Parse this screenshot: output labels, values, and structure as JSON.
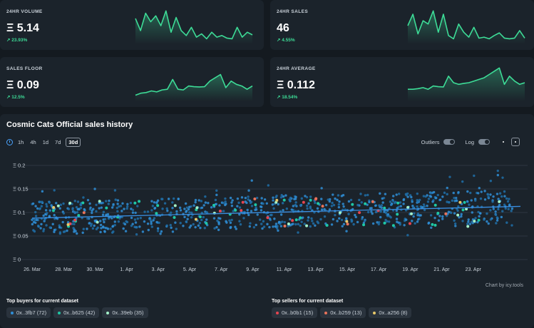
{
  "cards": [
    {
      "label": "24HR VOLUME",
      "value": "Ξ 5.14",
      "delta": "↗ 23.93%",
      "spark": [
        0.72,
        0.35,
        0.88,
        0.62,
        0.8,
        0.5,
        0.95,
        0.3,
        0.75,
        0.35,
        0.2,
        0.45,
        0.15,
        0.25,
        0.1,
        0.3,
        0.15,
        0.2,
        0.12,
        0.1,
        0.45,
        0.15,
        0.3,
        0.22
      ]
    },
    {
      "label": "24HR SALES",
      "value": "46",
      "delta": "↗ 4.55%",
      "spark": [
        0.5,
        0.85,
        0.25,
        0.65,
        0.55,
        0.95,
        0.3,
        0.85,
        0.2,
        0.1,
        0.55,
        0.3,
        0.15,
        0.45,
        0.12,
        0.15,
        0.1,
        0.2,
        0.28,
        0.12,
        0.1,
        0.12,
        0.35,
        0.12
      ]
    },
    {
      "label": "SALES FLOOR",
      "value": "Ξ 0.09",
      "delta": "↗ 12.5%",
      "spark": [
        0.12,
        0.18,
        0.2,
        0.25,
        0.22,
        0.28,
        0.3,
        0.6,
        0.3,
        0.28,
        0.4,
        0.38,
        0.37,
        0.38,
        0.55,
        0.65,
        0.75,
        0.35,
        0.55,
        0.45,
        0.4,
        0.3,
        0.4
      ]
    },
    {
      "label": "24HR AVERAGE",
      "value": "Ξ 0.112",
      "delta": "↗ 18.54%",
      "spark": [
        0.3,
        0.3,
        0.32,
        0.35,
        0.3,
        0.4,
        0.38,
        0.37,
        0.7,
        0.5,
        0.45,
        0.48,
        0.5,
        0.55,
        0.6,
        0.65,
        0.75,
        0.85,
        0.95,
        0.45,
        0.7,
        0.55,
        0.45,
        0.5
      ]
    }
  ],
  "main": {
    "title": "Cosmic Cats Official sales history",
    "ranges": [
      "1h",
      "4h",
      "1d",
      "7d",
      "30d"
    ],
    "active_range": "30d",
    "outliers_label": "Outliers",
    "log_label": "Log",
    "credit": "Chart by icy.tools"
  },
  "buyers": {
    "title": "Top buyers for current dataset",
    "items": [
      {
        "label": "0x..3fb7 (72)",
        "color": "#2f8fd8"
      },
      {
        "label": "0x..b625 (42)",
        "color": "#1fc7a5"
      },
      {
        "label": "0x..39eb (35)",
        "color": "#a3f0c8"
      }
    ]
  },
  "sellers": {
    "title": "Top sellers for current dataset",
    "items": [
      {
        "label": "0x..b0b1 (15)",
        "color": "#e64550"
      },
      {
        "label": "0x..b259 (13)",
        "color": "#e8735a"
      },
      {
        "label": "0x..a256 (8)",
        "color": "#e8c86a"
      }
    ]
  },
  "chart_data": {
    "type": "scatter",
    "title": "Cosmic Cats Official sales history",
    "y_tick_labels": [
      "Ξ 0",
      "Ξ 0.05",
      "Ξ 0.1",
      "Ξ 0.15",
      "Ξ 0.2"
    ],
    "y_ticks": [
      0,
      0.05,
      0.1,
      0.15,
      0.2
    ],
    "ylim": [
      0,
      0.2
    ],
    "x_tick_labels": [
      "26. Mar",
      "28. Mar",
      "30. Mar",
      "1. Apr",
      "3. Apr",
      "5. Apr",
      "7. Apr",
      "9. Apr",
      "11. Apr",
      "13. Apr",
      "15. Apr",
      "17. Apr",
      "19. Apr",
      "21. Apr",
      "23. Apr"
    ],
    "x_range_days": [
      0,
      31
    ],
    "grid": true,
    "trend_line": {
      "start": 0.088,
      "end": 0.113
    },
    "series": [
      {
        "color": "#2f8fd8"
      },
      {
        "color": "#1fc7a5"
      },
      {
        "color": "#a3f0c8"
      },
      {
        "color": "#e64550"
      },
      {
        "color": "#e8735a"
      },
      {
        "color": "#e8c86a"
      }
    ]
  }
}
